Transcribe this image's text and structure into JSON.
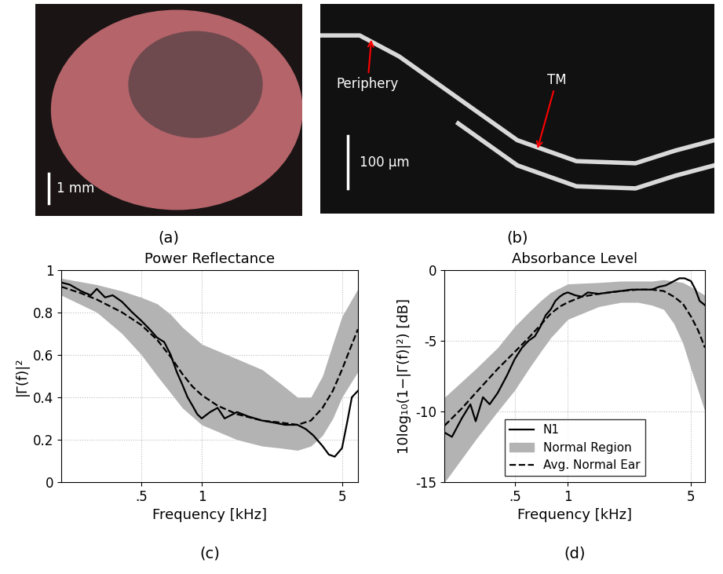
{
  "images": [
    {
      "panel": "(a)",
      "scale_bar": "1 mm"
    },
    {
      "panel": "(b)",
      "scale_bar": "100 µm",
      "annotations": [
        "Periphery",
        "TM"
      ]
    }
  ],
  "chart_data": [
    {
      "type": "line",
      "panel": "(c)",
      "title": "Power Reflectance",
      "x_label": "Frequency [kHz]",
      "y_label": "|Γ(f)|²",
      "log": "x",
      "grid": true,
      "xlim": [
        0.2,
        6
      ],
      "xticks": [
        {
          "value": 0.5,
          "label": ".5"
        },
        1,
        5
      ],
      "ylim": [
        0,
        1
      ],
      "yticks": [
        0,
        0.2,
        0.4,
        0.6,
        0.8,
        1
      ],
      "series": [
        {
          "name": "N1",
          "type": "line",
          "color": "#000000",
          "line_style": "solid",
          "x": [
            0.2,
            0.22,
            0.25,
            0.28,
            0.3,
            0.33,
            0.36,
            0.4,
            0.45,
            0.5,
            0.55,
            0.6,
            0.65,
            0.7,
            0.75,
            0.8,
            0.85,
            0.9,
            0.95,
            1,
            1.1,
            1.2,
            1.3,
            1.5,
            1.7,
            2,
            2.3,
            2.6,
            3,
            3.3,
            3.6,
            4,
            4.3,
            4.6,
            5,
            5.3,
            5.6,
            6
          ],
          "values": [
            0.94,
            0.93,
            0.9,
            0.88,
            0.91,
            0.87,
            0.88,
            0.85,
            0.8,
            0.76,
            0.72,
            0.68,
            0.66,
            0.6,
            0.52,
            0.46,
            0.4,
            0.36,
            0.32,
            0.3,
            0.33,
            0.35,
            0.3,
            0.33,
            0.31,
            0.29,
            0.28,
            0.27,
            0.27,
            0.25,
            0.22,
            0.17,
            0.13,
            0.12,
            0.16,
            0.28,
            0.4,
            0.43
          ]
        },
        {
          "name": "Normal Region",
          "type": "band",
          "color": "#b3b3b3",
          "x": [
            0.2,
            0.3,
            0.4,
            0.5,
            0.6,
            0.7,
            0.8,
            1,
            1.5,
            2,
            2.5,
            3,
            3.5,
            4,
            4.5,
            5,
            6
          ],
          "lower": [
            0.88,
            0.8,
            0.7,
            0.6,
            0.5,
            0.42,
            0.35,
            0.27,
            0.2,
            0.17,
            0.16,
            0.15,
            0.17,
            0.22,
            0.3,
            0.4,
            0.52
          ],
          "upper": [
            0.96,
            0.93,
            0.9,
            0.87,
            0.84,
            0.79,
            0.73,
            0.65,
            0.58,
            0.53,
            0.46,
            0.4,
            0.4,
            0.5,
            0.65,
            0.78,
            0.91
          ]
        },
        {
          "name": "Avg. Normal Ear",
          "type": "line",
          "color": "#000000",
          "line_style": "dashed",
          "x": [
            0.2,
            0.25,
            0.3,
            0.4,
            0.5,
            0.6,
            0.7,
            0.8,
            0.9,
            1,
            1.2,
            1.5,
            2,
            2.5,
            3,
            3.5,
            4,
            4.5,
            5,
            5.5,
            6
          ],
          "values": [
            0.92,
            0.89,
            0.86,
            0.8,
            0.74,
            0.67,
            0.59,
            0.51,
            0.45,
            0.41,
            0.36,
            0.32,
            0.29,
            0.28,
            0.27,
            0.29,
            0.35,
            0.43,
            0.53,
            0.63,
            0.72
          ]
        }
      ]
    },
    {
      "type": "line",
      "panel": "(d)",
      "title": "Absorbance Level",
      "x_label": "Frequency [kHz]",
      "y_label": "10log₁₀(1−|Γ(f)|²) [dB]",
      "log": "x",
      "grid": true,
      "legend": "lower center",
      "xlim": [
        0.2,
        6
      ],
      "xticks": [
        {
          "value": 0.5,
          "label": ".5"
        },
        1,
        5
      ],
      "ylim": [
        -15,
        0
      ],
      "yticks": [
        -15,
        -10,
        -5,
        0
      ],
      "series": [
        {
          "name": "N1",
          "type": "line",
          "color": "#000000",
          "line_style": "solid",
          "x": [
            0.2,
            0.22,
            0.25,
            0.28,
            0.3,
            0.33,
            0.36,
            0.4,
            0.45,
            0.5,
            0.55,
            0.6,
            0.65,
            0.7,
            0.75,
            0.8,
            0.85,
            0.9,
            0.95,
            1,
            1.1,
            1.2,
            1.3,
            1.5,
            1.7,
            2,
            2.3,
            2.6,
            3,
            3.3,
            3.6,
            4,
            4.3,
            4.6,
            5,
            5.3,
            5.6,
            6
          ],
          "values": [
            -11.5,
            -11.8,
            -10.5,
            -9.5,
            -10.7,
            -9.0,
            -9.5,
            -8.7,
            -7.5,
            -6.3,
            -5.5,
            -5.0,
            -4.7,
            -4.0,
            -3.2,
            -2.8,
            -2.2,
            -1.9,
            -1.7,
            -1.6,
            -1.8,
            -1.9,
            -1.6,
            -1.7,
            -1.6,
            -1.5,
            -1.4,
            -1.4,
            -1.4,
            -1.2,
            -1.1,
            -0.8,
            -0.6,
            -0.6,
            -0.8,
            -1.4,
            -2.2,
            -2.5
          ]
        },
        {
          "name": "Normal Region",
          "type": "band",
          "color": "#b3b3b3",
          "x": [
            0.2,
            0.3,
            0.4,
            0.5,
            0.6,
            0.7,
            0.8,
            1,
            1.5,
            2,
            2.5,
            3,
            3.5,
            4,
            4.5,
            5,
            6
          ],
          "lower": [
            -15,
            -12,
            -10,
            -8.5,
            -7,
            -5.8,
            -4.8,
            -3.5,
            -2.6,
            -2.3,
            -2.3,
            -2.5,
            -2.8,
            -3.8,
            -5.2,
            -7,
            -10
          ],
          "upper": [
            -9,
            -7,
            -5.5,
            -4,
            -3,
            -2.2,
            -1.6,
            -1.0,
            -0.9,
            -0.8,
            -0.8,
            -0.8,
            -0.7,
            -0.8,
            -0.9,
            -1.2,
            -1.8
          ]
        },
        {
          "name": "Avg. Normal Ear",
          "type": "line",
          "color": "#000000",
          "line_style": "dashed",
          "x": [
            0.2,
            0.25,
            0.3,
            0.4,
            0.5,
            0.6,
            0.7,
            0.8,
            0.9,
            1,
            1.2,
            1.5,
            2,
            2.5,
            3,
            3.5,
            4,
            4.5,
            5,
            5.5,
            6
          ],
          "values": [
            -11,
            -9.8,
            -8.7,
            -7,
            -5.8,
            -4.8,
            -3.9,
            -3.1,
            -2.6,
            -2.3,
            -1.9,
            -1.7,
            -1.5,
            -1.4,
            -1.4,
            -1.5,
            -1.9,
            -2.4,
            -3.3,
            -4.3,
            -5.5
          ]
        }
      ]
    }
  ]
}
